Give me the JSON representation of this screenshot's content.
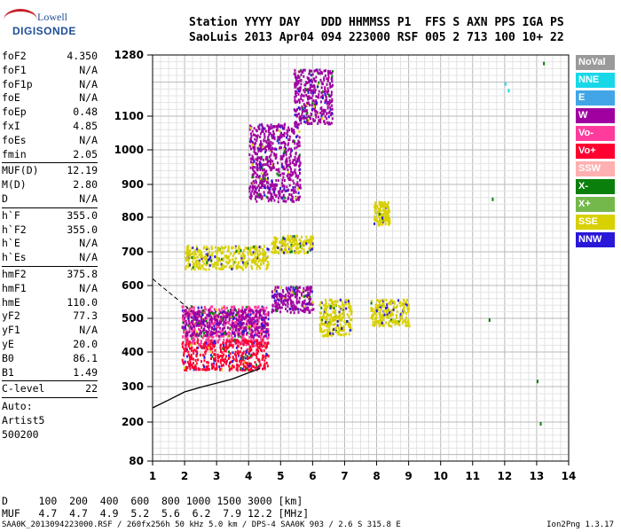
{
  "logo": {
    "line1": "Lowell",
    "line2": "DIGISONDE"
  },
  "header": {
    "row1": "Station YYYY DAY   DDD HHMMSS P1  FFS S AXN PPS IGA PS",
    "row2": "SaoLuis 2013 Apr04 094 223000 RSF 005 2 713 100 10+ 22"
  },
  "params": {
    "group1": [
      {
        "name": "foF2",
        "value": "4.350"
      },
      {
        "name": "foF1",
        "value": "N/A"
      },
      {
        "name": "foF1p",
        "value": "N/A"
      },
      {
        "name": "foE",
        "value": "N/A"
      },
      {
        "name": "foEp",
        "value": "0.48"
      },
      {
        "name": "fxI",
        "value": "4.85"
      },
      {
        "name": "foEs",
        "value": "N/A"
      },
      {
        "name": "fmin",
        "value": "2.05"
      }
    ],
    "group2": [
      {
        "name": "MUF(D)",
        "value": "12.19"
      },
      {
        "name": "M(D)",
        "value": "2.80"
      },
      {
        "name": "D",
        "value": "N/A"
      }
    ],
    "group3": [
      {
        "name": "h`F",
        "value": "355.0"
      },
      {
        "name": "h`F2",
        "value": "355.0"
      },
      {
        "name": "h`E",
        "value": "N/A"
      },
      {
        "name": "h`Es",
        "value": "N/A"
      }
    ],
    "group4": [
      {
        "name": "hmF2",
        "value": "375.8"
      },
      {
        "name": "hmF1",
        "value": "N/A"
      },
      {
        "name": "hmE",
        "value": "110.0"
      },
      {
        "name": "yF2",
        "value": "77.3"
      },
      {
        "name": "yF1",
        "value": "N/A"
      },
      {
        "name": "yE",
        "value": "20.0"
      },
      {
        "name": "B0",
        "value": "86.1"
      },
      {
        "name": "B1",
        "value": "1.49"
      }
    ],
    "clevel": {
      "name": "C-level",
      "value": "22"
    },
    "auto": [
      "Auto:",
      "Artist5",
      "500200"
    ]
  },
  "legend": [
    {
      "label": "NoVal",
      "color": "#9a9a9a"
    },
    {
      "label": "NNE",
      "color": "#18d8e8"
    },
    {
      "label": "E",
      "color": "#42a6e6"
    },
    {
      "label": "W",
      "color": "#a000a0"
    },
    {
      "label": "Vo-",
      "color": "#ff3c9c"
    },
    {
      "label": "Vo+",
      "color": "#ff0030"
    },
    {
      "label": "SSW",
      "color": "#ffb0b0"
    },
    {
      "label": "X-",
      "color": "#0b7f0b"
    },
    {
      "label": "X+",
      "color": "#74b84c"
    },
    {
      "label": "SSE",
      "color": "#d8d000"
    },
    {
      "label": "NNW",
      "color": "#2a18d8"
    }
  ],
  "muf_table": {
    "row_d": "D     100  200  400  600  800 1000 1500 3000 [km]",
    "row_muf": "MUF   4.7  4.7  4.9  5.2  5.6  6.2  7.9 12.2 [MHz]"
  },
  "footer": {
    "left": "SAA0K_2013094223000.RSF / 260fx256h 50 kHz 5.0 km / DPS-4 SAA0K 903 / 2.6 S 315.8 E",
    "right": "Ion2Png 1.3.17"
  },
  "chart_data": {
    "type": "scatter",
    "title": "",
    "xlabel": "",
    "ylabel": "",
    "x_ticks": [
      "1",
      "2",
      "3",
      "4",
      "5",
      "6",
      "7",
      "8",
      "9",
      "10",
      "11",
      "12",
      "13",
      "14"
    ],
    "y_ticks": [
      "80",
      "200",
      "300",
      "400",
      "500",
      "600",
      "700",
      "800",
      "900",
      "1000",
      "1100",
      "1280"
    ],
    "xlim": [
      1,
      14
    ],
    "ylim": [
      80,
      1280
    ],
    "y_scale": "nonlinear",
    "grid": true,
    "legend_position": "right",
    "true_height_profile": {
      "name": "",
      "x": [
        1.0,
        1.5,
        2.0,
        2.5,
        3.0,
        3.5,
        4.0,
        4.35
      ],
      "y": [
        240,
        262,
        285,
        298,
        310,
        322,
        340,
        352
      ]
    },
    "dashed_fit": {
      "x": [
        1.0,
        1.5,
        2.0,
        2.2
      ],
      "y": [
        620,
        580,
        540,
        520
      ]
    },
    "echo_traces": [
      {
        "series": "Vo-",
        "x": [
          1.9,
          4.6
        ],
        "y": [
          420,
          540
        ]
      },
      {
        "series": "Vo+",
        "x": [
          1.9,
          4.6
        ],
        "y": [
          350,
          440
        ]
      },
      {
        "series": "W",
        "x": [
          1.9,
          4.6
        ],
        "y": [
          450,
          530
        ]
      },
      {
        "series": "SSE",
        "x": [
          2.0,
          4.6
        ],
        "y": [
          650,
          720
        ]
      },
      {
        "series": "SSE",
        "x": [
          4.7,
          6.0
        ],
        "y": [
          700,
          750
        ]
      },
      {
        "series": "W",
        "x": [
          4.0,
          5.6
        ],
        "y": [
          850,
          1080
        ]
      },
      {
        "series": "W",
        "x": [
          5.4,
          6.6
        ],
        "y": [
          1080,
          1240
        ]
      },
      {
        "series": "W",
        "x": [
          4.7,
          6.0
        ],
        "y": [
          520,
          600
        ]
      },
      {
        "series": "SSE",
        "x": [
          6.2,
          7.2
        ],
        "y": [
          450,
          560
        ]
      },
      {
        "series": "SSE",
        "x": [
          7.8,
          9.0
        ],
        "y": [
          480,
          560
        ]
      },
      {
        "series": "SSE",
        "x": [
          7.9,
          8.4
        ],
        "y": [
          780,
          850
        ]
      }
    ],
    "isolated_points": [
      {
        "series": "X-",
        "x": [
          11.6,
          13.2,
          13.0,
          11.5,
          13.1
        ],
        "y": [
          860,
          1260,
          320,
          500,
          200
        ]
      },
      {
        "series": "NNE",
        "x": [
          12.0,
          12.1
        ],
        "y": [
          1200,
          1180
        ]
      }
    ]
  }
}
